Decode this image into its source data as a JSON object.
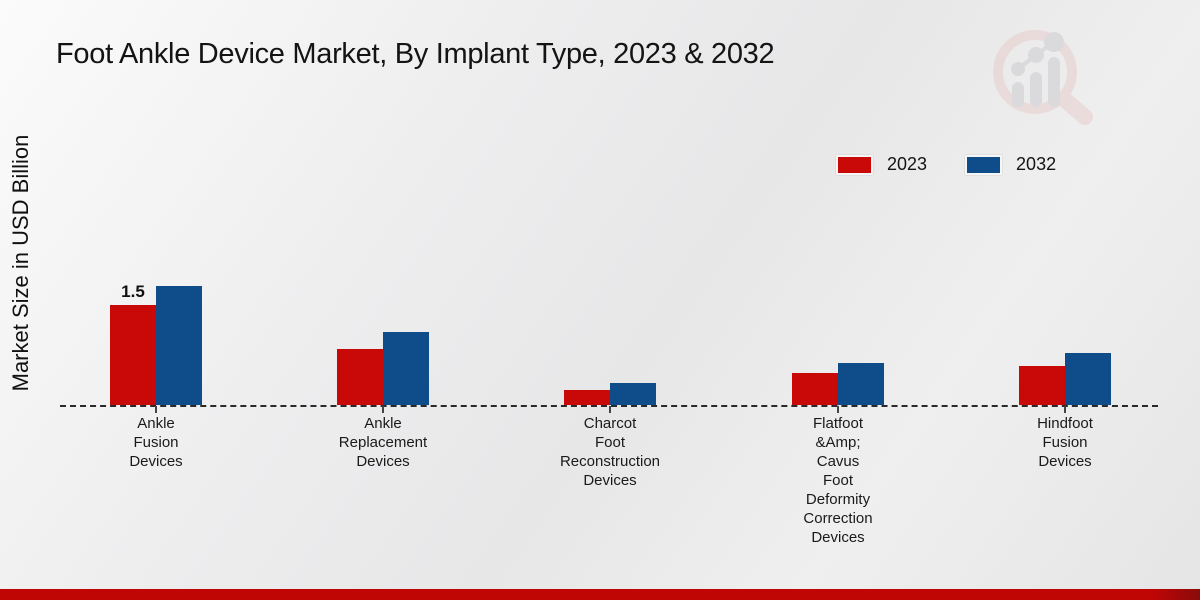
{
  "title": "Foot Ankle Device Market, By Implant Type, 2023 & 2032",
  "y_axis_label": "Market Size in USD Billion",
  "legend": {
    "items": [
      {
        "label": "2023",
        "color": "#c90808"
      },
      {
        "label": "2032",
        "color": "#0e4c8a"
      }
    ],
    "position": "top-right"
  },
  "colors": {
    "series_2023": "#c90808",
    "series_2032": "#0e4c8a",
    "footer_strip": "#c00505",
    "footer_strip_dark": "#8a0b0b",
    "background": "#e9e9ea",
    "baseline": "#2a2a2a",
    "watermark_pink": "#e9cbcb",
    "watermark_gray": "#c9c9cd"
  },
  "watermark_icon": "magnifier-bar-chart-logo",
  "chart_data": {
    "type": "bar",
    "title": "Foot Ankle Device Market, By Implant Type, 2023 & 2032",
    "ylabel": "Market Size in USD Billion",
    "xlabel": "",
    "categories": [
      "Ankle Fusion Devices",
      "Ankle Replacement Devices",
      "Charcot Foot Reconstruction Devices",
      "Flatfoot &Amp; Cavus Foot Deformity Correction Devices",
      "Hindfoot Fusion Devices"
    ],
    "category_label_lines": [
      [
        "Ankle",
        "Fusion",
        "Devices"
      ],
      [
        "Ankle",
        "Replacement",
        "Devices"
      ],
      [
        "Charcot",
        "Foot",
        "Reconstruction",
        "Devices"
      ],
      [
        "Flatfoot",
        "&Amp;",
        "Cavus",
        "Foot",
        "Deformity",
        "Correction",
        "Devices"
      ],
      [
        "Hindfoot",
        "Fusion",
        "Devices"
      ]
    ],
    "series": [
      {
        "name": "2023",
        "color": "#c90808",
        "values": [
          1.5,
          0.84,
          0.23,
          0.48,
          0.59
        ]
      },
      {
        "name": "2032",
        "color": "#0e4c8a",
        "values": [
          1.79,
          1.1,
          0.33,
          0.63,
          0.78
        ]
      }
    ],
    "data_labels": [
      {
        "series_index": 0,
        "category_index": 0,
        "text": "1.5"
      }
    ],
    "ylim": [
      0,
      2.2
    ],
    "grid": false,
    "baseline_style": "dashed",
    "legend_position": "top-right"
  }
}
